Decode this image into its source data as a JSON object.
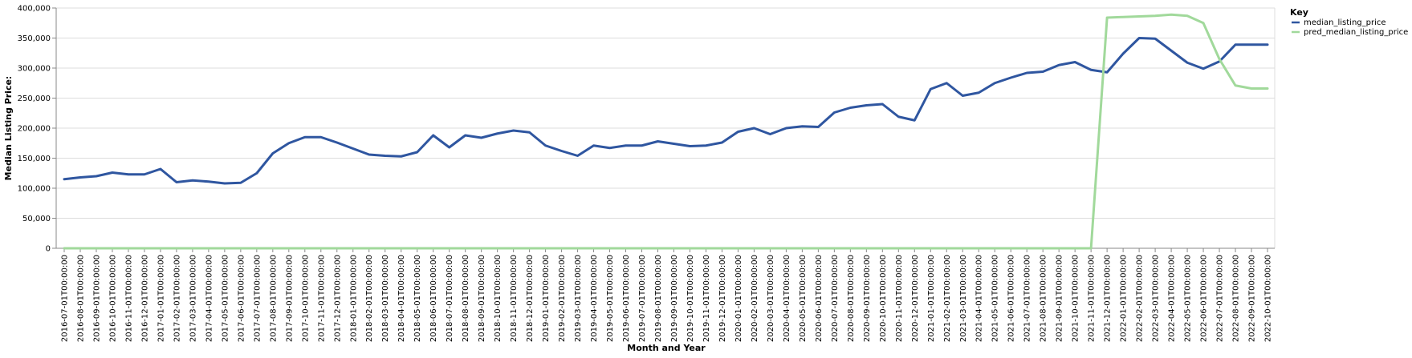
{
  "chart_data": {
    "type": "line",
    "xlabel": "Month and Year",
    "ylabel": "Median Listing Price:",
    "ylim": [
      0,
      400000
    ],
    "y_ticks": [
      "0",
      "50,000",
      "100,000",
      "150,000",
      "200,000",
      "250,000",
      "300,000",
      "350,000",
      "400,000"
    ],
    "grid": true,
    "legend_title": "Key",
    "legend_position": "right",
    "categories": [
      "2016-07-01T00:00:00",
      "2016-08-01T00:00:00",
      "2016-09-01T00:00:00",
      "2016-10-01T00:00:00",
      "2016-11-01T00:00:00",
      "2016-12-01T00:00:00",
      "2017-01-01T00:00:00",
      "2017-02-01T00:00:00",
      "2017-03-01T00:00:00",
      "2017-04-01T00:00:00",
      "2017-05-01T00:00:00",
      "2017-06-01T00:00:00",
      "2017-07-01T00:00:00",
      "2017-08-01T00:00:00",
      "2017-09-01T00:00:00",
      "2017-10-01T00:00:00",
      "2017-11-01T00:00:00",
      "2017-12-01T00:00:00",
      "2018-01-01T00:00:00",
      "2018-02-01T00:00:00",
      "2018-03-01T00:00:00",
      "2018-04-01T00:00:00",
      "2018-05-01T00:00:00",
      "2018-06-01T00:00:00",
      "2018-07-01T00:00:00",
      "2018-08-01T00:00:00",
      "2018-09-01T00:00:00",
      "2018-10-01T00:00:00",
      "2018-11-01T00:00:00",
      "2018-12-01T00:00:00",
      "2019-01-01T00:00:00",
      "2019-02-01T00:00:00",
      "2019-03-01T00:00:00",
      "2019-04-01T00:00:00",
      "2019-05-01T00:00:00",
      "2019-06-01T00:00:00",
      "2019-07-01T00:00:00",
      "2019-08-01T00:00:00",
      "2019-09-01T00:00:00",
      "2019-10-01T00:00:00",
      "2019-11-01T00:00:00",
      "2019-12-01T00:00:00",
      "2020-01-01T00:00:00",
      "2020-02-01T00:00:00",
      "2020-03-01T00:00:00",
      "2020-04-01T00:00:00",
      "2020-05-01T00:00:00",
      "2020-06-01T00:00:00",
      "2020-07-01T00:00:00",
      "2020-08-01T00:00:00",
      "2020-09-01T00:00:00",
      "2020-10-01T00:00:00",
      "2020-11-01T00:00:00",
      "2020-12-01T00:00:00",
      "2021-01-01T00:00:00",
      "2021-02-01T00:00:00",
      "2021-03-01T00:00:00",
      "2021-04-01T00:00:00",
      "2021-05-01T00:00:00",
      "2021-06-01T00:00:00",
      "2021-07-01T00:00:00",
      "2021-08-01T00:00:00",
      "2021-09-01T00:00:00",
      "2021-10-01T00:00:00",
      "2021-11-01T00:00:00",
      "2021-12-01T00:00:00",
      "2022-01-01T00:00:00",
      "2022-02-01T00:00:00",
      "2022-03-01T00:00:00",
      "2022-04-01T00:00:00",
      "2022-05-01T00:00:00",
      "2022-06-01T00:00:00",
      "2022-07-01T00:00:00",
      "2022-08-01T00:00:00",
      "2022-09-01T00:00:00",
      "2022-10-01T00:00:00"
    ],
    "series": [
      {
        "name": "median_listing_price",
        "color": "#2f56a0",
        "values": [
          115000,
          118000,
          120000,
          126000,
          123000,
          123000,
          132000,
          110000,
          113000,
          111000,
          108000,
          109000,
          125000,
          158000,
          175000,
          185000,
          185000,
          176000,
          166000,
          156000,
          154000,
          153000,
          160000,
          188000,
          168000,
          188000,
          184000,
          191000,
          196000,
          193000,
          171000,
          162000,
          154000,
          171000,
          167000,
          171000,
          171000,
          178000,
          174000,
          170000,
          171000,
          176000,
          194000,
          200000,
          190000,
          200000,
          203000,
          202000,
          226000,
          234000,
          238000,
          240000,
          219000,
          213000,
          265000,
          275000,
          254000,
          259000,
          275000,
          284000,
          292000,
          294000,
          305000,
          310000,
          297000,
          293000,
          324000,
          350000,
          349000,
          329000,
          309000,
          299000,
          311000,
          339000,
          339000,
          339000
        ]
      },
      {
        "name": "pred_median_listing_price",
        "color": "#a1d99b",
        "values": [
          0,
          0,
          0,
          0,
          0,
          0,
          0,
          0,
          0,
          0,
          0,
          0,
          0,
          0,
          0,
          0,
          0,
          0,
          0,
          0,
          0,
          0,
          0,
          0,
          0,
          0,
          0,
          0,
          0,
          0,
          0,
          0,
          0,
          0,
          0,
          0,
          0,
          0,
          0,
          0,
          0,
          0,
          0,
          0,
          0,
          0,
          0,
          0,
          0,
          0,
          0,
          0,
          0,
          0,
          0,
          0,
          0,
          0,
          0,
          0,
          0,
          0,
          0,
          0,
          0,
          384000,
          385000,
          386000,
          387000,
          389000,
          387000,
          375000,
          315000,
          271000,
          266000,
          266000
        ]
      }
    ]
  }
}
